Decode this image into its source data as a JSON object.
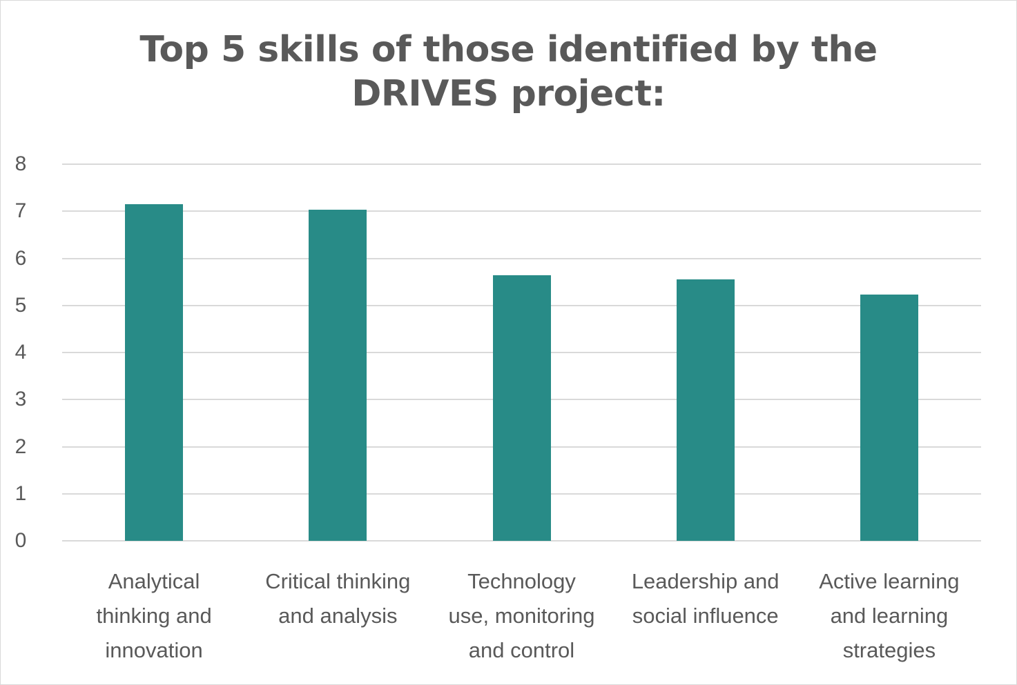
{
  "chart_data": {
    "type": "bar",
    "title": "Top 5 skills of those identified by the DRIVES project:",
    "title_lines": [
      "Top 5 skills of those identified by the",
      "DRIVES project:"
    ],
    "categories": [
      "Analytical thinking and innovation",
      "Critical thinking and analysis",
      "Technology use, monitoring and control",
      "Leadership and social influence",
      "Active learning and learning strategies"
    ],
    "category_labels_wrapped": [
      "Analytical\nthinking and\ninnovation",
      "Critical thinking\nand analysis",
      "Technology\nuse, monitoring\nand control",
      "Leadership and\nsocial influence",
      "Active learning\nand learning\nstrategies"
    ],
    "values": [
      7.15,
      7.03,
      5.64,
      5.55,
      5.23
    ],
    "xlabel": "",
    "ylabel": "",
    "ylim": [
      0,
      8
    ],
    "yticks": [
      "0",
      "1",
      "2",
      "3",
      "4",
      "5",
      "6",
      "7",
      "8"
    ],
    "grid": true,
    "legend": null,
    "bar_color": "#288b87"
  }
}
